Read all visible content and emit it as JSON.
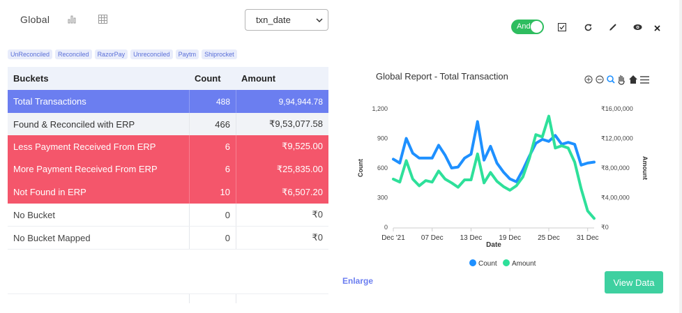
{
  "header": {
    "title": "Global",
    "select_value": "txn_date",
    "toggle_label": "And"
  },
  "tags": [
    "UnReconciled",
    "Reconciled",
    "RazorPay",
    "Unreconciled",
    "Paytm",
    "Shiprocket"
  ],
  "table": {
    "columns": [
      "Buckets",
      "Count",
      "Amount"
    ],
    "rows": [
      {
        "bucket": "Total Transactions",
        "count": "488",
        "amount": "9,94,944.78"
      },
      {
        "bucket": "Found & Reconciled with ERP",
        "count": "466",
        "amount": "₹9,53,077.58"
      },
      {
        "bucket": "Less Payment Received From ERP",
        "count": "6",
        "amount": "₹9,525.00"
      },
      {
        "bucket": "More Payment Received From ERP",
        "count": "6",
        "amount": "₹25,835.00"
      },
      {
        "bucket": "Not Found in ERP",
        "count": "10",
        "amount": "₹6,507.20"
      },
      {
        "bucket": "No Bucket",
        "count": "0",
        "amount": "₹0"
      },
      {
        "bucket": "No Bucket Mapped",
        "count": "0",
        "amount": "₹0"
      }
    ]
  },
  "actions": {
    "enlarge_label": "Enlarge",
    "view_data_label": "View Data"
  },
  "colors": {
    "count_series": "#1e90ff",
    "amount_series": "#2ee09a",
    "total_row": "#6b7ef0",
    "alert_row": "#f4566b"
  },
  "chart_data": {
    "type": "line",
    "title": "Global Report - Total Transaction",
    "xlabel": "Date",
    "ylabel_left": "Count",
    "ylabel_right": "Amount",
    "x_ticks": [
      "Dec '21",
      "07 Dec",
      "13 Dec",
      "19 Dec",
      "25 Dec",
      "31 Dec"
    ],
    "y_left_ticks": [
      "0",
      "300",
      "600",
      "900",
      "1,200"
    ],
    "y_right_ticks": [
      "₹0",
      "₹4,00,000",
      "₹8,00,000",
      "₹12,00,000",
      "₹16,00,000"
    ],
    "ylim_left": [
      0,
      1200
    ],
    "ylim_right": [
      0,
      1600000
    ],
    "x": [
      "2021-12-01",
      "2021-12-02",
      "2021-12-03",
      "2021-12-04",
      "2021-12-05",
      "2021-12-06",
      "2021-12-07",
      "2021-12-08",
      "2021-12-09",
      "2021-12-10",
      "2021-12-11",
      "2021-12-12",
      "2021-12-13",
      "2021-12-14",
      "2021-12-15",
      "2021-12-16",
      "2021-12-17",
      "2021-12-18",
      "2021-12-19",
      "2021-12-20",
      "2021-12-21",
      "2021-12-22",
      "2021-12-23",
      "2021-12-24",
      "2021-12-25",
      "2021-12-26",
      "2021-12-27",
      "2021-12-28",
      "2021-12-29",
      "2021-12-30",
      "2021-12-31",
      "2022-01-01"
    ],
    "series": [
      {
        "name": "Count",
        "axis": "left",
        "values": [
          690,
          650,
          900,
          750,
          700,
          700,
          700,
          830,
          730,
          600,
          610,
          700,
          740,
          1070,
          680,
          820,
          650,
          560,
          490,
          460,
          580,
          720,
          850,
          890,
          870,
          930,
          840,
          860,
          840,
          630,
          650,
          660
        ]
      },
      {
        "name": "Amount",
        "axis": "right",
        "values": [
          650000,
          610000,
          900000,
          650000,
          560000,
          630000,
          610000,
          760000,
          650000,
          600000,
          540000,
          640000,
          640000,
          990000,
          600000,
          740000,
          620000,
          550000,
          500000,
          560000,
          680000,
          930000,
          1250000,
          1220000,
          1500000,
          1070000,
          1100000,
          1070000,
          880000,
          520000,
          220000,
          120000
        ]
      }
    ],
    "legend_position": "bottom",
    "toolbar_icons": [
      "zoom-in-icon",
      "zoom-out-icon",
      "zoom-magnify-icon",
      "pan-hand-icon",
      "home-icon",
      "menu-icon"
    ]
  }
}
